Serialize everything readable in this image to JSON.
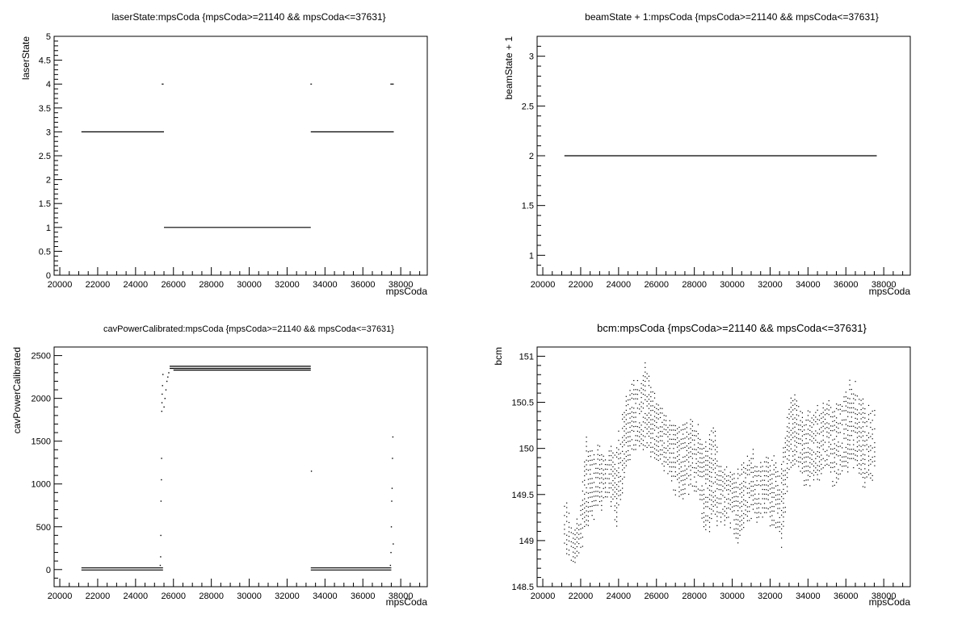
{
  "chart_data": [
    {
      "type": "scatter",
      "title": "laserState:mpsCoda {mpsCoda>=21140 && mpsCoda<=37631}",
      "xlabel": "mpsCoda",
      "ylabel": "laserState",
      "xlim": [
        19700,
        39400
      ],
      "ylim": [
        0,
        5
      ],
      "xticks": [
        "20000",
        "22000",
        "24000",
        "26000",
        "28000",
        "30000",
        "32000",
        "34000",
        "36000",
        "38000"
      ],
      "yticks": [
        "0",
        "0.5",
        "1",
        "1.5",
        "2",
        "2.5",
        "3",
        "3.5",
        "4",
        "4.5",
        "5"
      ],
      "segments": [
        {
          "x": [
            21140,
            25500
          ],
          "y": 3
        },
        {
          "x": [
            25500,
            33250
          ],
          "y": 1
        },
        {
          "x": [
            33250,
            37631
          ],
          "y": 3
        },
        {
          "x": [
            25380,
            25480
          ],
          "y": 4
        },
        {
          "x": [
            33230,
            33310
          ],
          "y": 4
        },
        {
          "x": [
            37450,
            37631
          ],
          "y": 4
        }
      ]
    },
    {
      "type": "scatter",
      "title": "beamState + 1:mpsCoda {mpsCoda>=21140 && mpsCoda<=37631}",
      "xlabel": "mpsCoda",
      "ylabel": "beamState + 1",
      "xlim": [
        19700,
        39400
      ],
      "ylim": [
        0.8,
        3.2
      ],
      "xticks": [
        "20000",
        "22000",
        "24000",
        "26000",
        "28000",
        "30000",
        "32000",
        "34000",
        "36000",
        "38000"
      ],
      "yticks": [
        "1",
        "1.5",
        "2",
        "2.5",
        "3"
      ],
      "segments": [
        {
          "x": [
            21140,
            37631
          ],
          "y": 2
        }
      ]
    },
    {
      "type": "scatter",
      "title": "cavPowerCalibrated:mpsCoda {mpsCoda>=21140 && mpsCoda<=37631}",
      "xlabel": "mpsCoda",
      "ylabel": "cavPowerCalibrated",
      "xlim": [
        19700,
        39400
      ],
      "ylim": [
        -200,
        2600
      ],
      "xticks": [
        "20000",
        "22000",
        "24000",
        "26000",
        "28000",
        "30000",
        "32000",
        "34000",
        "36000",
        "38000"
      ],
      "yticks": [
        "0",
        "500",
        "1000",
        "1500",
        "2000",
        "2500"
      ],
      "segments": [
        {
          "x": [
            21140,
            25450
          ],
          "y": 20
        },
        {
          "x": [
            21140,
            25450
          ],
          "y": -5
        },
        {
          "x": [
            25800,
            33250
          ],
          "y": 2375
        },
        {
          "x": [
            25800,
            33250
          ],
          "y": 2350
        },
        {
          "x": [
            26000,
            33250
          ],
          "y": 2330
        },
        {
          "x": [
            33250,
            37500
          ],
          "y": 20
        },
        {
          "x": [
            33250,
            37500
          ],
          "y": -5
        }
      ],
      "ramp_points": [
        [
          25300,
          50
        ],
        [
          25320,
          150
        ],
        [
          25330,
          400
        ],
        [
          25340,
          800
        ],
        [
          25360,
          1050
        ],
        [
          25370,
          1300
        ],
        [
          25380,
          1850
        ],
        [
          25390,
          1950
        ],
        [
          25400,
          2050
        ],
        [
          25420,
          2150
        ],
        [
          25440,
          2280
        ],
        [
          25500,
          1900
        ],
        [
          25550,
          2000
        ],
        [
          25600,
          2100
        ],
        [
          25650,
          2200
        ],
        [
          25700,
          2250
        ],
        [
          25750,
          2300
        ],
        [
          33280,
          1150
        ],
        [
          37450,
          50
        ],
        [
          37480,
          200
        ],
        [
          37500,
          500
        ],
        [
          37520,
          800
        ],
        [
          37540,
          950
        ],
        [
          37560,
          1300
        ],
        [
          37580,
          1550
        ],
        [
          37600,
          300
        ]
      ]
    },
    {
      "type": "scatter",
      "title": "bcm:mpsCoda {mpsCoda>=21140 && mpsCoda<=37631}",
      "xlabel": "mpsCoda",
      "ylabel": "bcm",
      "xlim": [
        19700,
        39400
      ],
      "ylim": [
        148.5,
        151.1
      ],
      "xticks": [
        "20000",
        "22000",
        "24000",
        "26000",
        "28000",
        "30000",
        "32000",
        "34000",
        "36000",
        "38000"
      ],
      "yticks": [
        "148.5",
        "149",
        "149.5",
        "150",
        "150.5",
        "151"
      ],
      "bands": [
        {
          "x": 21140,
          "lo": 148.95,
          "hi": 149.45
        },
        {
          "x": 21500,
          "lo": 148.75,
          "hi": 149.2
        },
        {
          "x": 21900,
          "lo": 148.8,
          "hi": 149.3
        },
        {
          "x": 22300,
          "lo": 149.2,
          "hi": 150.1
        },
        {
          "x": 22700,
          "lo": 149.3,
          "hi": 149.95
        },
        {
          "x": 23100,
          "lo": 149.4,
          "hi": 150.0
        },
        {
          "x": 23500,
          "lo": 149.5,
          "hi": 149.95
        },
        {
          "x": 23900,
          "lo": 149.2,
          "hi": 150.05
        },
        {
          "x": 24300,
          "lo": 149.7,
          "hi": 150.5
        },
        {
          "x": 24700,
          "lo": 149.95,
          "hi": 150.7
        },
        {
          "x": 25100,
          "lo": 150.0,
          "hi": 150.7
        },
        {
          "x": 25400,
          "lo": 150.0,
          "hi": 150.95
        },
        {
          "x": 25800,
          "lo": 149.95,
          "hi": 150.6
        },
        {
          "x": 26200,
          "lo": 149.85,
          "hi": 150.5
        },
        {
          "x": 26600,
          "lo": 149.7,
          "hi": 150.3
        },
        {
          "x": 27000,
          "lo": 149.55,
          "hi": 150.25
        },
        {
          "x": 27400,
          "lo": 149.45,
          "hi": 150.3
        },
        {
          "x": 27800,
          "lo": 149.6,
          "hi": 150.25
        },
        {
          "x": 28200,
          "lo": 149.5,
          "hi": 150.2
        },
        {
          "x": 28600,
          "lo": 149.1,
          "hi": 150.0
        },
        {
          "x": 29000,
          "lo": 149.2,
          "hi": 150.3
        },
        {
          "x": 29400,
          "lo": 149.25,
          "hi": 149.75
        },
        {
          "x": 29800,
          "lo": 149.2,
          "hi": 149.8
        },
        {
          "x": 30200,
          "lo": 149.0,
          "hi": 149.75
        },
        {
          "x": 30600,
          "lo": 149.2,
          "hi": 149.8
        },
        {
          "x": 31000,
          "lo": 149.3,
          "hi": 149.95
        },
        {
          "x": 31400,
          "lo": 149.2,
          "hi": 149.85
        },
        {
          "x": 31800,
          "lo": 149.25,
          "hi": 149.9
        },
        {
          "x": 32200,
          "lo": 149.2,
          "hi": 149.9
        },
        {
          "x": 32600,
          "lo": 149.0,
          "hi": 149.85
        },
        {
          "x": 33000,
          "lo": 149.7,
          "hi": 150.5
        },
        {
          "x": 33400,
          "lo": 149.85,
          "hi": 150.6
        },
        {
          "x": 33800,
          "lo": 149.6,
          "hi": 150.3
        },
        {
          "x": 34200,
          "lo": 149.65,
          "hi": 150.45
        },
        {
          "x": 34600,
          "lo": 149.7,
          "hi": 150.4
        },
        {
          "x": 35000,
          "lo": 149.8,
          "hi": 150.55
        },
        {
          "x": 35400,
          "lo": 149.6,
          "hi": 150.4
        },
        {
          "x": 35800,
          "lo": 149.7,
          "hi": 150.5
        },
        {
          "x": 36200,
          "lo": 149.85,
          "hi": 150.75
        },
        {
          "x": 36600,
          "lo": 149.8,
          "hi": 150.65
        },
        {
          "x": 37000,
          "lo": 149.6,
          "hi": 150.45
        },
        {
          "x": 37400,
          "lo": 149.7,
          "hi": 150.45
        },
        {
          "x": 37631,
          "lo": 149.85,
          "hi": 150.5
        }
      ]
    }
  ]
}
